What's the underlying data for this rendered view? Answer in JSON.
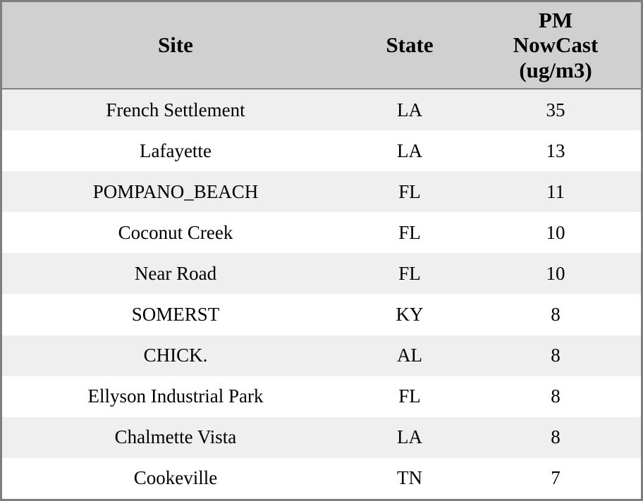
{
  "table": {
    "columns": [
      {
        "label": "Site"
      },
      {
        "label": "State"
      },
      {
        "label": "PM NowCast (ug/m3)",
        "label_lines": [
          "PM",
          "NowCast",
          "(ug/m3)"
        ]
      }
    ],
    "rows": [
      {
        "site": "French Settlement",
        "state": "LA",
        "pm_nowcast": "35"
      },
      {
        "site": "Lafayette",
        "state": "LA",
        "pm_nowcast": "13"
      },
      {
        "site": "POMPANO_BEACH",
        "state": "FL",
        "pm_nowcast": "11"
      },
      {
        "site": "Coconut Creek",
        "state": "FL",
        "pm_nowcast": "10"
      },
      {
        "site": "Near Road",
        "state": "FL",
        "pm_nowcast": "10"
      },
      {
        "site": "SOMERST",
        "state": "KY",
        "pm_nowcast": "8"
      },
      {
        "site": "CHICK.",
        "state": "AL",
        "pm_nowcast": "8"
      },
      {
        "site": "Ellyson Industrial Park",
        "state": "FL",
        "pm_nowcast": "8"
      },
      {
        "site": "Chalmette Vista",
        "state": "LA",
        "pm_nowcast": "8"
      },
      {
        "site": "Cookeville",
        "state": "TN",
        "pm_nowcast": "7"
      }
    ]
  },
  "colors": {
    "header_bg": "#d0d0d0",
    "header_separator": "#828282",
    "row_alt_bg": "#efefef",
    "row_bg": "#ffffff",
    "outer_border": "#7f7f7f",
    "text": "#000000"
  },
  "chart_data": {
    "type": "table",
    "columns": [
      "Site",
      "State",
      "PM NowCast (ug/m3)"
    ],
    "rows": [
      [
        "French Settlement",
        "LA",
        35
      ],
      [
        "Lafayette",
        "LA",
        13
      ],
      [
        "POMPANO_BEACH",
        "FL",
        11
      ],
      [
        "Coconut Creek",
        "FL",
        10
      ],
      [
        "Near Road",
        "FL",
        10
      ],
      [
        "SOMERST",
        "KY",
        8
      ],
      [
        "CHICK.",
        "AL",
        8
      ],
      [
        "Ellyson Industrial Park",
        "FL",
        8
      ],
      [
        "Chalmette Vista",
        "LA",
        8
      ],
      [
        "Cookeville",
        "TN",
        7
      ]
    ],
    "layout_hints": {
      "header_bg": "#d0d0d0",
      "alternating_row_bg": [
        "#efefef",
        "#ffffff"
      ],
      "value_column_sorted": "descending"
    }
  }
}
